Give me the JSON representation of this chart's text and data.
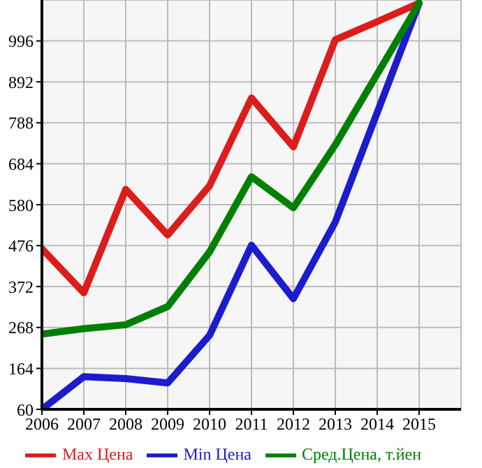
{
  "chart_data": {
    "type": "line",
    "x": [
      2006,
      2007,
      2008,
      2009,
      2010,
      2011,
      2012,
      2013,
      2014,
      2015
    ],
    "series": [
      {
        "name": "Max Цена",
        "color": "#dd1c1c",
        "values": [
          468,
          356,
          619,
          503,
          628,
          851,
          727,
          999,
          1045,
          1092
        ]
      },
      {
        "name": "Min Цена",
        "color": "#1c1ccc",
        "values": [
          60,
          143,
          138,
          127,
          248,
          477,
          341,
          536,
          814,
          1092
        ]
      },
      {
        "name": "Сред.Цена, т.йен",
        "color": "#008000",
        "values": [
          251,
          265,
          275,
          321,
          460,
          651,
          572,
          732,
          912,
          1092
        ]
      }
    ],
    "xlim": [
      2006,
      2016
    ],
    "xticks": [
      2006,
      2007,
      2008,
      2009,
      2010,
      2011,
      2012,
      2013,
      2014,
      2015
    ],
    "ylim": [
      60,
      1100
    ],
    "yticks": [
      60,
      164,
      268,
      372,
      476,
      580,
      684,
      788,
      892,
      996
    ],
    "grid": true,
    "legend": "bottom",
    "marker": "none",
    "line_style": "solid"
  }
}
